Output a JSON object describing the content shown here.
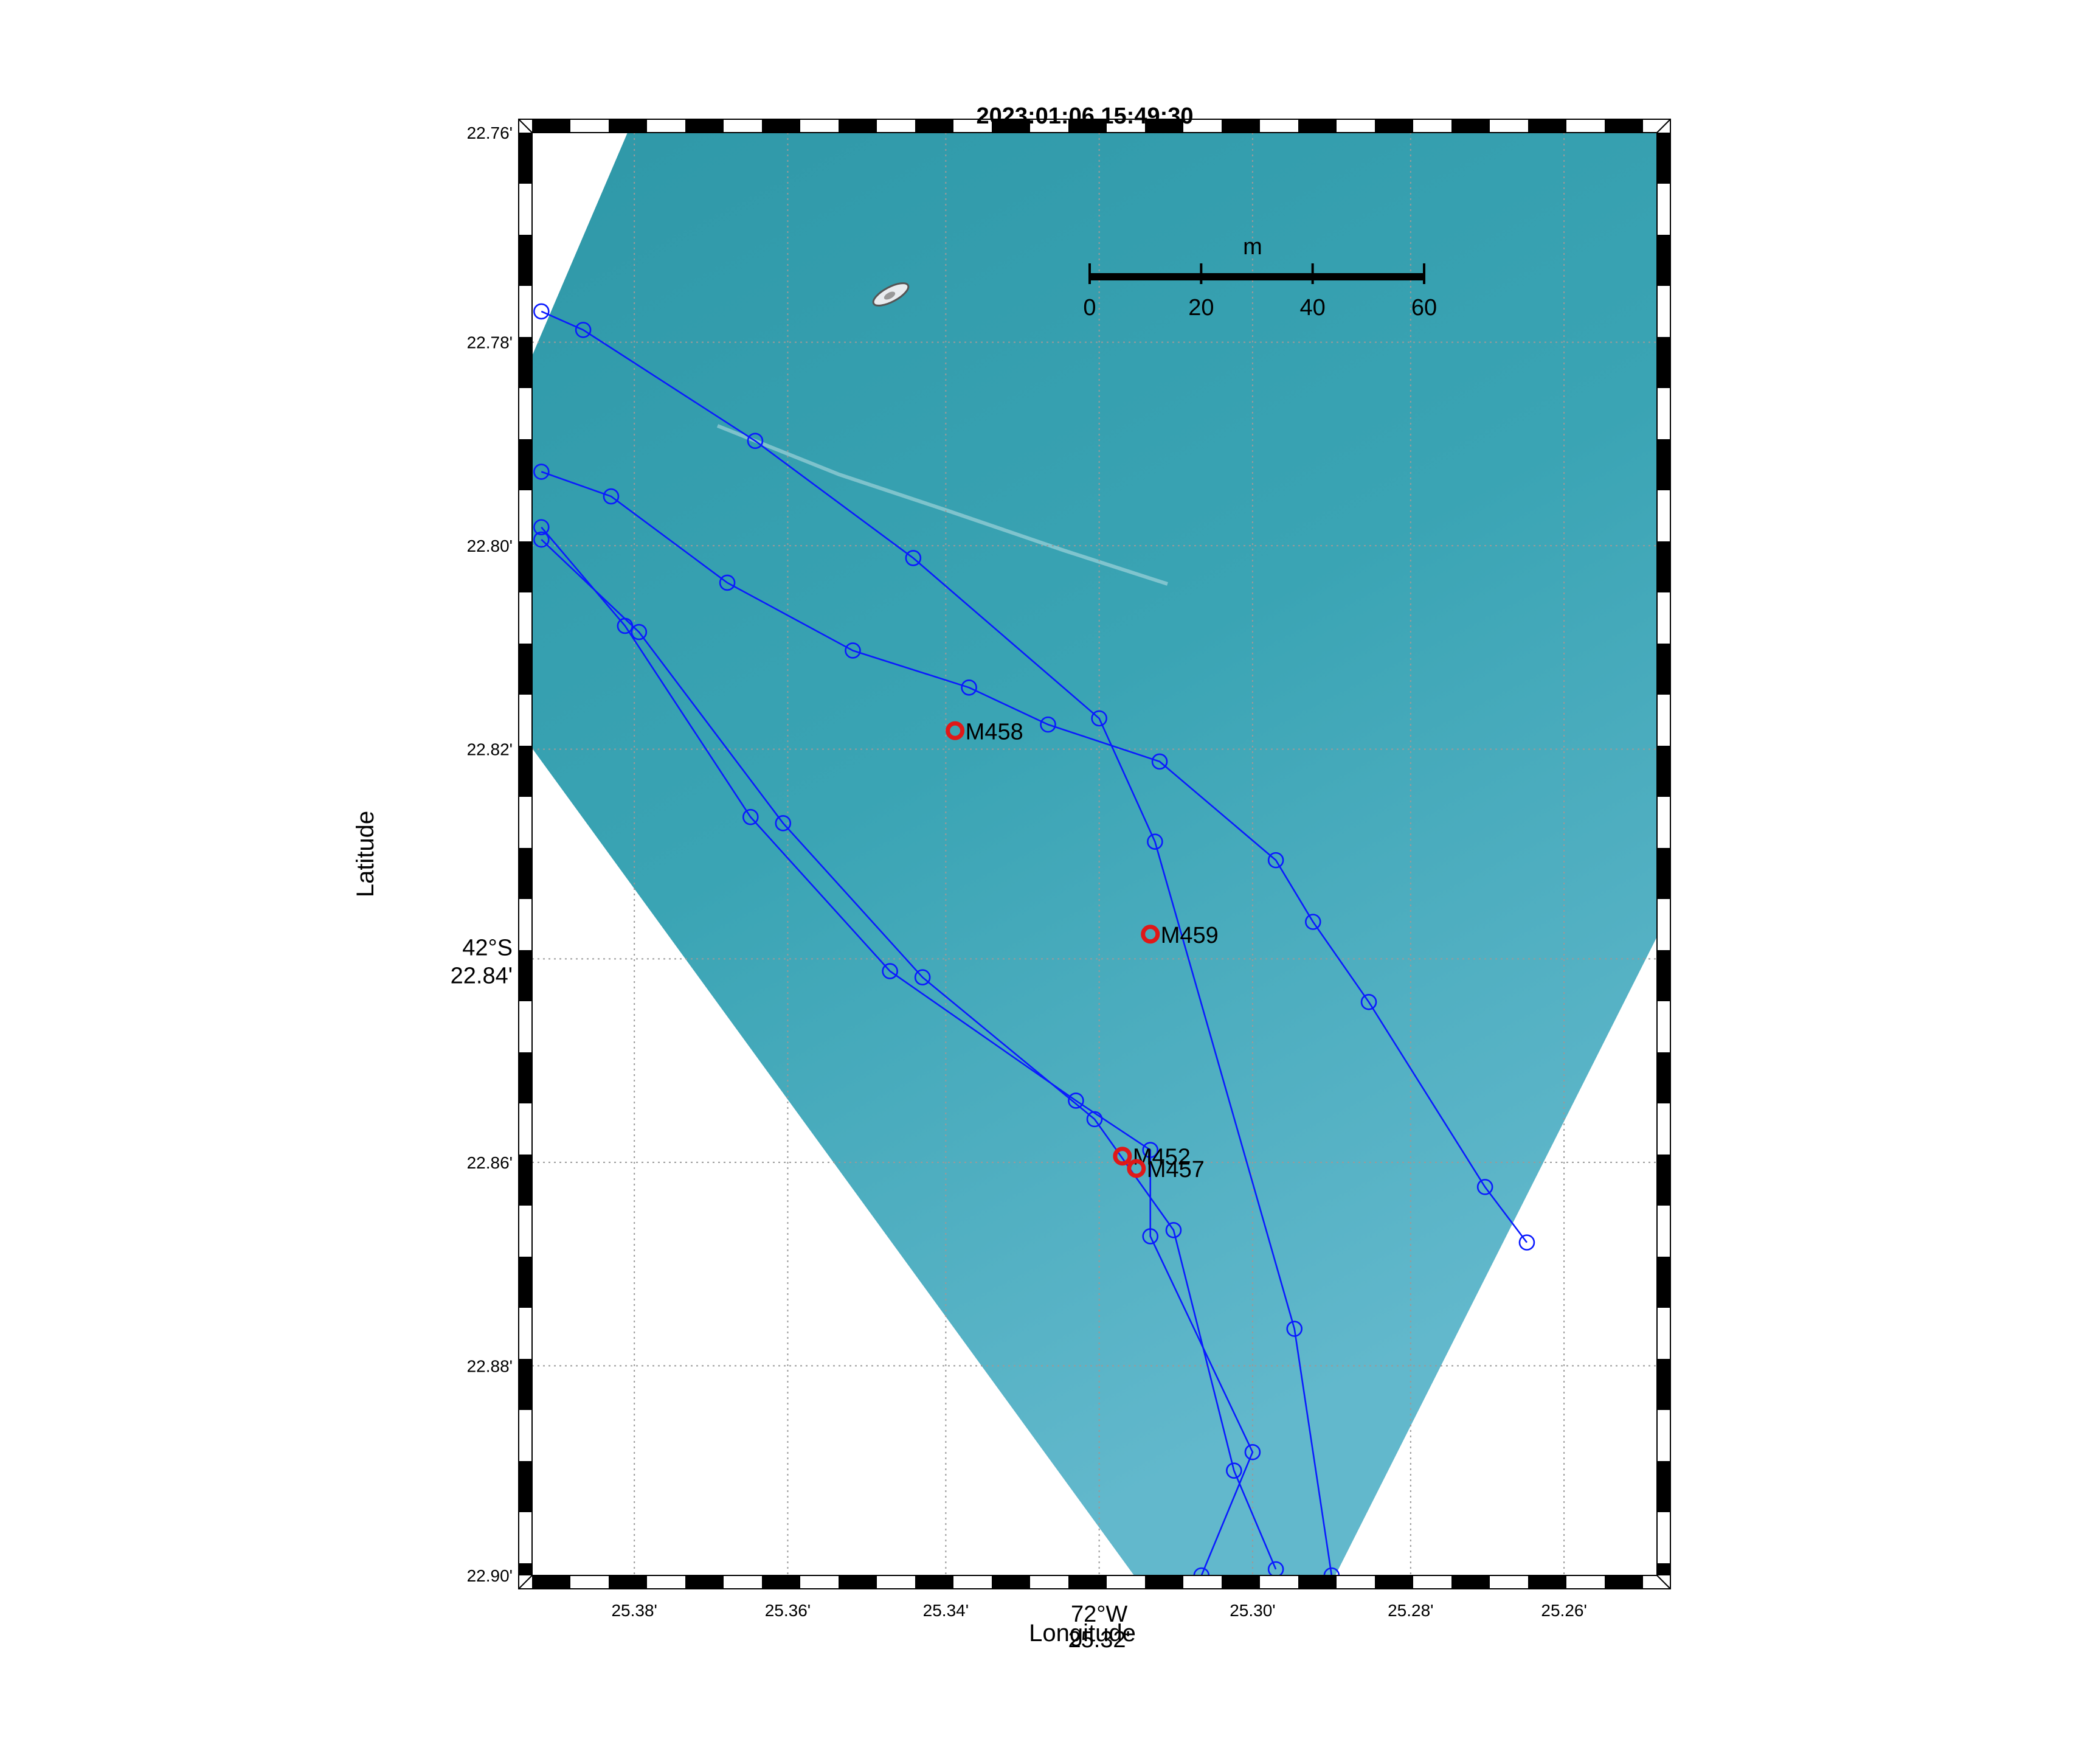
{
  "title": "2023:01:06 15:49:30",
  "axes": {
    "xlabel": "Longitude",
    "ylabel": "Latitude",
    "x_ticks": [
      {
        "value": -72.423,
        "label": "25.38'"
      },
      {
        "value": -72.42267,
        "label": "25.36'"
      },
      {
        "value": -72.42233,
        "label": "25.34'"
      },
      {
        "value": -72.42167,
        "label": "25.30'"
      },
      {
        "value": -72.42133,
        "label": "25.28'"
      },
      {
        "value": -72.421,
        "label": "25.26'"
      }
    ],
    "x_major": {
      "value": -72.422,
      "deg": "72°W",
      "min": "25.32'"
    },
    "y_ticks": [
      {
        "value": -42.37933,
        "label": "22.76'"
      },
      {
        "value": -42.37967,
        "label": "22.78'"
      },
      {
        "value": -42.38,
        "label": "22.80'"
      },
      {
        "value": -42.38033,
        "label": "22.82'"
      },
      {
        "value": -42.381,
        "label": "22.86'"
      },
      {
        "value": -42.38133,
        "label": "22.88'"
      },
      {
        "value": -42.38167,
        "label": "22.90'"
      }
    ],
    "y_major": {
      "value": -42.38067,
      "deg": "42°S",
      "min": "22.84'"
    },
    "xlim": [
      -72.42322,
      -72.4208
    ],
    "ylim": [
      -42.38167,
      -42.37933
    ]
  },
  "scale_bar": {
    "unit": "m",
    "ticks": [
      "0",
      "20",
      "40",
      "60"
    ]
  },
  "colors": {
    "water": "#3aa1b0",
    "track": "#0a1aff",
    "marker": "#e01818",
    "frame": "#000000"
  },
  "chart_data": {
    "type": "scatter",
    "tracks": [
      [
        [
          -72.4232,
          -42.37962
        ],
        [
          -72.42311,
          -42.37965
        ],
        [
          -72.42274,
          -42.37983
        ],
        [
          -72.4224,
          -42.38002
        ],
        [
          -72.422,
          -42.38028
        ],
        [
          -72.42188,
          -42.38048
        ],
        [
          -72.42158,
          -42.38127
        ],
        [
          -72.4215,
          -42.38167
        ]
      ],
      [
        [
          -72.4232,
          -42.37988
        ],
        [
          -72.42305,
          -42.37992
        ],
        [
          -72.4228,
          -42.38006
        ],
        [
          -72.42253,
          -42.38017
        ],
        [
          -72.42228,
          -42.38023
        ],
        [
          -72.42211,
          -42.38029
        ],
        [
          -72.42187,
          -42.38035
        ],
        [
          -72.42162,
          -42.38051
        ],
        [
          -72.42154,
          -42.38061
        ],
        [
          -72.42142,
          -42.38074
        ],
        [
          -72.42117,
          -42.38104
        ],
        [
          -72.42108,
          -42.38113
        ]
      ],
      [
        [
          -72.4232,
          -42.37997
        ],
        [
          -72.42302,
          -42.38013
        ],
        [
          -72.42275,
          -42.38044
        ],
        [
          -72.42245,
          -42.38069
        ],
        [
          -72.42205,
          -42.3809
        ],
        [
          -72.42189,
          -42.38098
        ],
        [
          -72.42189,
          -42.38112
        ],
        [
          -72.42167,
          -42.38147
        ],
        [
          -72.42178,
          -42.38167
        ]
      ],
      [
        [
          -72.4232,
          -42.37999
        ],
        [
          -72.42299,
          -42.38014
        ],
        [
          -72.42268,
          -42.38045
        ],
        [
          -72.42238,
          -42.3807
        ],
        [
          -72.42201,
          -42.38093
        ],
        [
          -72.42184,
          -42.38111
        ],
        [
          -72.42171,
          -42.3815
        ],
        [
          -72.42162,
          -42.38166
        ]
      ]
    ],
    "labels": [
      {
        "name": "M458",
        "x": -72.42231,
        "y": -42.3803
      },
      {
        "name": "M459",
        "x": -72.42189,
        "y": -42.38063
      },
      {
        "name": "M452",
        "x": -72.42195,
        "y": -42.38099
      },
      {
        "name": "M457",
        "x": -72.42192,
        "y": -42.38101
      }
    ]
  }
}
